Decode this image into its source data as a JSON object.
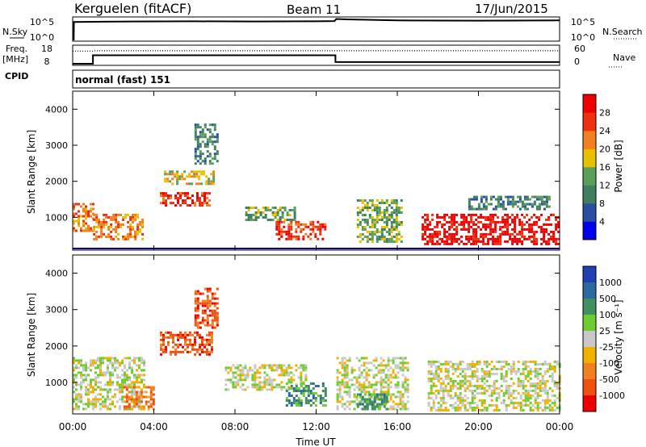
{
  "header": {
    "station": "Kerguelen (fitACF)",
    "beam": "Beam 11",
    "date": "17/Jun/2015"
  },
  "panel_labels": {
    "nsky": "N.Sky",
    "nsearch": "N.Search",
    "freq_top": "Freq.",
    "freq_unit": "[MHz]",
    "nave": "Nave",
    "cpid": "CPID",
    "cpid_text": "normal (fast) 151"
  },
  "colors": {
    "power_scale": [
      "#0000ee",
      "#2a4fa0",
      "#3f7f5f",
      "#5aa05a",
      "#e8c000",
      "#f08020",
      "#ee3010",
      "#ee0000"
    ],
    "velocity_scale": [
      "#2040b0",
      "#2a6aa0",
      "#3f8f5f",
      "#6ccc30",
      "#c8c8c8",
      "#f0b000",
      "#f08020",
      "#ee5010",
      "#ee0000"
    ]
  },
  "chart_data": [
    {
      "type": "line",
      "name": "nsky-nsearch",
      "title": "",
      "yleft_ticks": [
        "10^5",
        "10^0"
      ],
      "yright_ticks": [
        "10^5",
        "10^0"
      ],
      "series": [
        {
          "name": "N.Sky",
          "x": [
            0.0,
            0.05,
            0.06,
            3.0,
            6.0,
            9.0,
            12.0,
            12.9,
            13.0,
            13.5,
            16.0,
            20.0,
            24.0
          ],
          "y": [
            0.0,
            0.0,
            4.2,
            4.3,
            4.35,
            4.3,
            4.35,
            4.4,
            4.9,
            4.8,
            4.55,
            4.5,
            4.55
          ]
        }
      ]
    },
    {
      "type": "line",
      "name": "freq-nave",
      "title": "",
      "yleft_ticks": [
        "18",
        "8"
      ],
      "yright_ticks": [
        "60",
        "0"
      ],
      "series": [
        {
          "name": "Freq.",
          "x": [
            0.0,
            1.0,
            1.0,
            12.95,
            12.95,
            24.0
          ],
          "y": [
            8.0,
            8.0,
            13.0,
            13.0,
            9.0,
            9.0
          ]
        },
        {
          "name": "Nave",
          "x": [
            0.0,
            1.0,
            1.05,
            24.0
          ],
          "y": [
            45,
            45,
            46,
            46
          ]
        }
      ]
    },
    {
      "type": "heatmap",
      "name": "power",
      "title": "",
      "xlabel": "",
      "ylabel": "Slant Range [km]",
      "xlim": [
        0,
        24
      ],
      "ylim": [
        180,
        4500
      ],
      "yticks": [
        "4000",
        "3000",
        "2000",
        "1000"
      ],
      "colorbar": {
        "label": "Power [dB]",
        "ticks": [
          "28",
          "24",
          "20",
          "16",
          "12",
          "8",
          "4"
        ],
        "range": [
          0,
          32
        ]
      },
      "regions": [
        {
          "x": [
            0.0,
            1.0
          ],
          "y": [
            600,
            1400
          ],
          "value": 22
        },
        {
          "x": [
            1.0,
            3.5
          ],
          "y": [
            400,
            1100
          ],
          "value": 20
        },
        {
          "x": [
            4.3,
            6.8
          ],
          "y": [
            1300,
            1700
          ],
          "value": 26
        },
        {
          "x": [
            4.5,
            7.0
          ],
          "y": [
            1900,
            2300
          ],
          "value": 18
        },
        {
          "x": [
            6.0,
            7.1
          ],
          "y": [
            2500,
            3600
          ],
          "value": 10
        },
        {
          "x": [
            8.5,
            11.0
          ],
          "y": [
            900,
            1300
          ],
          "value": 14
        },
        {
          "x": [
            10.0,
            12.5
          ],
          "y": [
            400,
            900
          ],
          "value": 24
        },
        {
          "x": [
            14.0,
            16.2
          ],
          "y": [
            300,
            1500
          ],
          "value": 14
        },
        {
          "x": [
            17.2,
            24.0
          ],
          "y": [
            250,
            1100
          ],
          "value": 28
        },
        {
          "x": [
            19.5,
            23.5
          ],
          "y": [
            1200,
            1600
          ],
          "value": 10
        }
      ]
    },
    {
      "type": "heatmap",
      "name": "velocity",
      "title": "",
      "xlabel": "Time UT",
      "ylabel": "Slant Range [km]",
      "xlim": [
        0,
        24
      ],
      "ylim": [
        180,
        4500
      ],
      "xticks": [
        "00:00",
        "04:00",
        "08:00",
        "12:00",
        "16:00",
        "20:00",
        "00:00"
      ],
      "yticks": [
        "4000",
        "3000",
        "2000",
        "1000"
      ],
      "colorbar": {
        "label": "Velocity [m s⁻¹]",
        "ticks": [
          "1000",
          "500",
          "100",
          "25",
          "-25",
          "-100",
          "-500",
          "-1000"
        ]
      },
      "regions": [
        {
          "x": [
            0.0,
            3.5
          ],
          "y": [
            300,
            1700
          ],
          "value": 0
        },
        {
          "x": [
            2.5,
            4.0
          ],
          "y": [
            300,
            900
          ],
          "value": -100
        },
        {
          "x": [
            4.3,
            6.9
          ],
          "y": [
            1800,
            2400
          ],
          "value": -500
        },
        {
          "x": [
            6.0,
            7.1
          ],
          "y": [
            2500,
            3600
          ],
          "value": -500
        },
        {
          "x": [
            7.5,
            11.5
          ],
          "y": [
            800,
            1500
          ],
          "value": 0
        },
        {
          "x": [
            10.5,
            12.5
          ],
          "y": [
            400,
            1000
          ],
          "value": 100
        },
        {
          "x": [
            13.0,
            16.5
          ],
          "y": [
            300,
            1700
          ],
          "value": 0
        },
        {
          "x": [
            14.0,
            15.5
          ],
          "y": [
            300,
            700
          ],
          "value": 100
        },
        {
          "x": [
            17.5,
            24.0
          ],
          "y": [
            250,
            1600
          ],
          "value": 0
        }
      ]
    }
  ]
}
